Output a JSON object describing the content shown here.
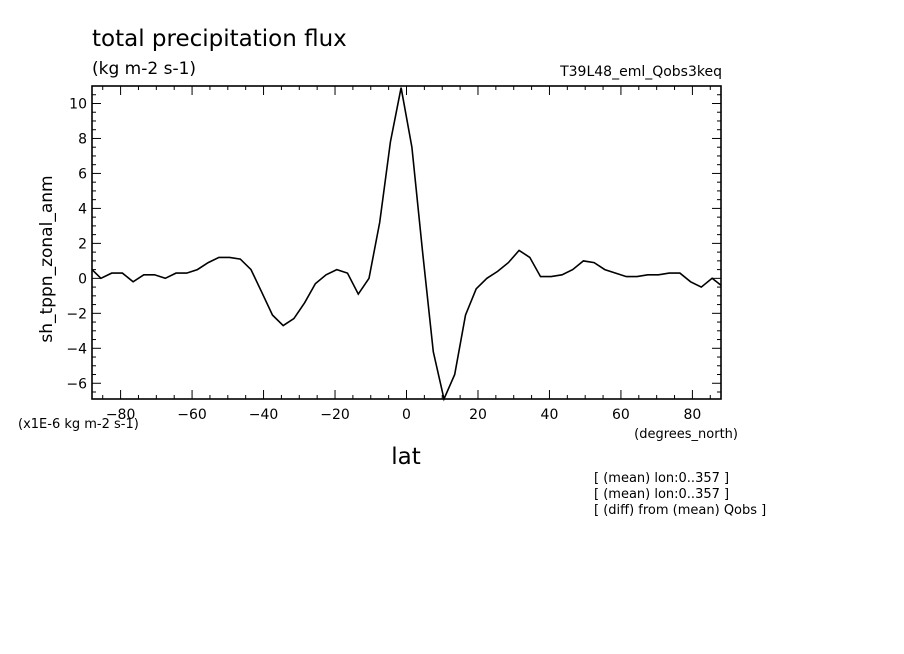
{
  "chart_data": {
    "type": "line",
    "title": "total precipitation flux",
    "units": "(kg m-2 s-1)",
    "experiment": "T39L48_eml_Qobs3keq",
    "xlabel": "lat",
    "xunits": "(degrees_north)",
    "ylabel": "sh_tppn_zonal_anm",
    "yscale_note": "(x1E-6 kg m-2 s-1)",
    "xlim": [
      -88,
      88
    ],
    "ylim": [
      -6.9,
      11
    ],
    "xticks": [
      -80,
      -60,
      -40,
      -20,
      0,
      20,
      40,
      60,
      80
    ],
    "yticks": [
      -6,
      -4,
      -2,
      0,
      2,
      4,
      6,
      8,
      10
    ],
    "notes": [
      "[ (mean) lon:0..357 ]",
      "[ (mean) lon:0..357 ]",
      "[ (diff) from (mean) Qobs ]"
    ],
    "x": [
      -88,
      -85.5,
      -82.5,
      -79.5,
      -76.5,
      -73.5,
      -70.5,
      -67.5,
      -64.5,
      -61.5,
      -58.5,
      -55.5,
      -52.5,
      -49.5,
      -46.5,
      -43.5,
      -40.5,
      -37.5,
      -34.5,
      -31.5,
      -28.5,
      -25.5,
      -22.5,
      -19.5,
      -16.5,
      -13.5,
      -10.5,
      -7.5,
      -4.5,
      -1.5,
      1.5,
      4.5,
      7.5,
      10.5,
      13.5,
      16.5,
      19.5,
      22.5,
      25.5,
      28.5,
      31.5,
      34.5,
      37.5,
      40.5,
      43.5,
      46.5,
      49.5,
      52.5,
      55.5,
      58.5,
      61.5,
      64.5,
      67.5,
      70.5,
      73.5,
      76.5,
      79.5,
      82.5,
      85.5,
      88
    ],
    "y": [
      0.5,
      0.0,
      0.3,
      0.3,
      -0.2,
      0.2,
      0.2,
      0.0,
      0.3,
      0.3,
      0.5,
      0.9,
      1.2,
      1.2,
      1.1,
      0.5,
      -0.8,
      -2.1,
      -2.7,
      -2.3,
      -1.4,
      -0.3,
      0.2,
      0.5,
      0.3,
      -0.9,
      0.0,
      3.2,
      7.8,
      10.9,
      7.5,
      1.5,
      -4.2,
      -6.9,
      -5.5,
      -2.1,
      -0.6,
      0.0,
      0.4,
      0.9,
      1.6,
      1.2,
      0.1,
      0.1,
      0.2,
      0.5,
      1.0,
      0.9,
      0.5,
      0.3,
      0.1,
      0.1,
      0.2,
      0.2,
      0.3,
      0.3,
      -0.2,
      -0.5,
      0.0,
      -0.4
    ]
  }
}
